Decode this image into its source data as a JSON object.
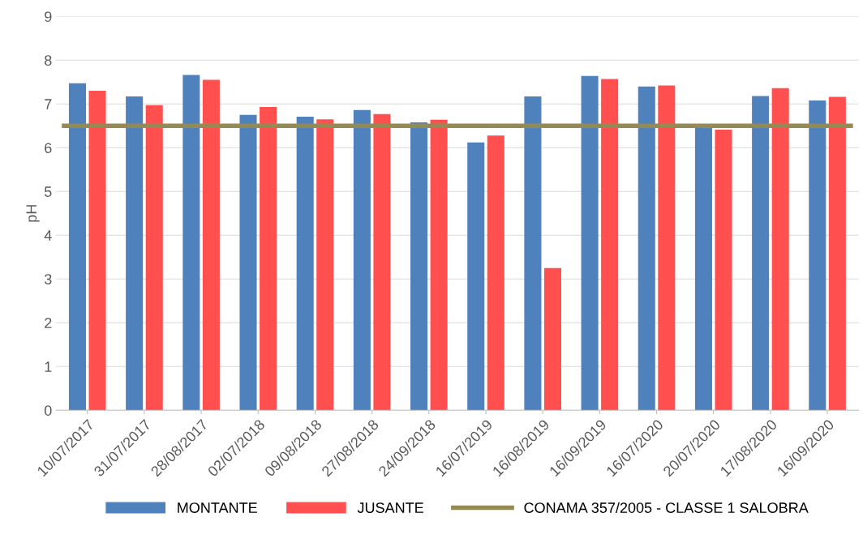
{
  "chart_data": {
    "type": "bar",
    "ylabel": "pH",
    "categories": [
      "10/07/2017",
      "31/07/2017",
      "28/08/2017",
      "02/07/2018",
      "09/08/2018",
      "27/08/2018",
      "24/09/2018",
      "16/07/2019",
      "16/08/2019",
      "16/09/2019",
      "16/07/2020",
      "20/07/2020",
      "17/08/2020",
      "16/09/2020"
    ],
    "series": [
      {
        "name": "MONTANTE",
        "color": "#4f81bd",
        "values": [
          7.47,
          7.17,
          7.66,
          6.75,
          6.71,
          6.86,
          6.58,
          6.12,
          7.17,
          7.64,
          7.4,
          6.5,
          7.18,
          7.08
        ]
      },
      {
        "name": "JUSANTE",
        "color": "#ff4f4f",
        "values": [
          7.3,
          6.97,
          7.55,
          6.93,
          6.65,
          6.77,
          6.64,
          6.28,
          3.25,
          7.57,
          7.42,
          6.41,
          7.36,
          7.16
        ]
      }
    ],
    "ref_lines": [
      {
        "axis": "y",
        "value": 6.5,
        "label": "CONAMA 357/2005 - CLASSE 1 SALOBRA",
        "color": "#948a54",
        "line_style": "solid"
      }
    ],
    "ylim": [
      0,
      9
    ],
    "yticks": [
      0,
      1,
      2,
      3,
      4,
      5,
      6,
      7,
      8,
      9
    ],
    "grid": "y",
    "legend": "bottom"
  }
}
